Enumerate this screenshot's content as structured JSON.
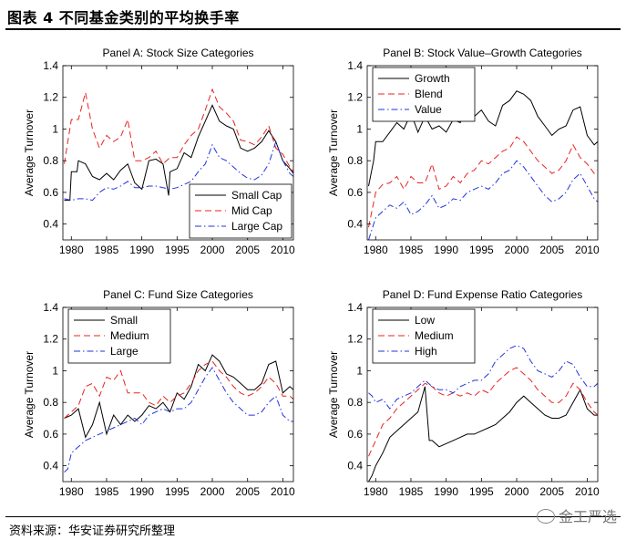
{
  "figure_title": "图表 4 不同基金类别的平均换手率",
  "source_note": "资料来源：华安证券研究所整理",
  "watermark": "金工严选",
  "colors": {
    "black": "#000000",
    "red": "#e8231e",
    "blue": "#2233dd"
  },
  "chart_data": [
    {
      "type": "line",
      "title": "Panel A: Stock Size Categories",
      "xlabel": "",
      "ylabel": "Average Turnover",
      "xlim": [
        1978.8,
        2011.5
      ],
      "ylim": [
        0.3,
        1.4
      ],
      "xticks": [
        1980,
        1985,
        1990,
        1995,
        2000,
        2005,
        2010
      ],
      "yticks": [
        0.4,
        0.6,
        0.8,
        1,
        1.2,
        1.4
      ],
      "legend_position": "bottom-right",
      "series": [
        {
          "name": "Small Cap",
          "style": "solid",
          "color": "#000000",
          "x": [
            1979,
            1979.8,
            1980,
            1980.8,
            1981,
            1982,
            1983,
            1984,
            1985,
            1986,
            1987,
            1988,
            1989,
            1990,
            1991,
            1992,
            1993,
            1993.8,
            1994,
            1995,
            1996,
            1997,
            1998,
            1999,
            2000,
            2001,
            2002,
            2003,
            2004,
            2005,
            2006,
            2007,
            2008,
            2009,
            2010,
            2011,
            2011.5
          ],
          "values": [
            0.55,
            0.55,
            0.73,
            0.73,
            0.8,
            0.78,
            0.7,
            0.68,
            0.72,
            0.68,
            0.74,
            0.78,
            0.66,
            0.62,
            0.8,
            0.81,
            0.78,
            0.58,
            0.73,
            0.75,
            0.85,
            0.82,
            0.95,
            1.05,
            1.15,
            1.05,
            1.02,
            1.0,
            0.88,
            0.86,
            0.88,
            0.92,
            0.99,
            0.92,
            0.8,
            0.75,
            0.72
          ]
        },
        {
          "name": "Mid Cap",
          "style": "dashed",
          "color": "#e8231e",
          "x": [
            1979,
            1980,
            1981,
            1982,
            1983,
            1984,
            1985,
            1986,
            1987,
            1988,
            1989,
            1990,
            1991,
            1992,
            1993,
            1994,
            1995,
            1996,
            1997,
            1998,
            1999,
            2000,
            2001,
            2002,
            2003,
            2004,
            2005,
            2006,
            2007,
            2008,
            2009,
            2010,
            2011,
            2011.5
          ],
          "values": [
            0.78,
            1.06,
            1.06,
            1.23,
            1.0,
            0.88,
            0.96,
            0.92,
            0.95,
            1.06,
            0.8,
            0.8,
            0.82,
            0.86,
            0.78,
            0.82,
            0.82,
            0.9,
            0.96,
            1.0,
            1.12,
            1.25,
            1.14,
            1.1,
            1.05,
            0.93,
            0.92,
            0.9,
            0.95,
            1.02,
            0.88,
            0.84,
            0.76,
            0.73
          ]
        },
        {
          "name": "Large Cap",
          "style": "dashdot",
          "color": "#2233dd",
          "x": [
            1979,
            1980,
            1981,
            1982,
            1983,
            1984,
            1985,
            1986,
            1987,
            1988,
            1989,
            1990,
            1991,
            1992,
            1993,
            1994,
            1995,
            1996,
            1997,
            1998,
            1999,
            2000,
            2001,
            2002,
            2003,
            2004,
            2005,
            2006,
            2007,
            2008,
            2009,
            2010,
            2011,
            2011.5
          ],
          "values": [
            0.56,
            0.55,
            0.56,
            0.56,
            0.55,
            0.6,
            0.63,
            0.62,
            0.64,
            0.67,
            0.63,
            0.63,
            0.64,
            0.64,
            0.63,
            0.62,
            0.63,
            0.65,
            0.67,
            0.73,
            0.78,
            0.9,
            0.82,
            0.8,
            0.76,
            0.72,
            0.69,
            0.68,
            0.71,
            0.78,
            0.92,
            0.8,
            0.72,
            0.7
          ]
        }
      ]
    },
    {
      "type": "line",
      "title": "Panel B: Stock Value–Growth Categories",
      "xlabel": "",
      "ylabel": "Average Turnover",
      "xlim": [
        1978.8,
        2011.5
      ],
      "ylim": [
        0.3,
        1.4
      ],
      "xticks": [
        1980,
        1985,
        1990,
        1995,
        2000,
        2005,
        2010
      ],
      "yticks": [
        0.4,
        0.6,
        0.8,
        1,
        1.2,
        1.4
      ],
      "legend_position": "top-left",
      "series": [
        {
          "name": "Growth",
          "style": "solid",
          "color": "#000000",
          "x": [
            1979,
            1979.7,
            1980,
            1981,
            1982,
            1983,
            1984,
            1985,
            1986,
            1987,
            1988,
            1989,
            1990,
            1991,
            1992,
            1993,
            1994,
            1995,
            1996,
            1997,
            1998,
            1999,
            2000,
            2001,
            2002,
            2003,
            2004,
            2005,
            2006,
            2007,
            2008,
            2009,
            2010,
            2011,
            2011.5
          ],
          "values": [
            0.64,
            0.8,
            0.92,
            0.92,
            0.98,
            1.04,
            1.0,
            1.1,
            0.98,
            1.08,
            1.0,
            1.02,
            0.98,
            1.06,
            1.04,
            1.14,
            1.08,
            1.12,
            1.05,
            1.02,
            1.15,
            1.18,
            1.24,
            1.22,
            1.18,
            1.08,
            1.02,
            0.96,
            1.0,
            1.02,
            1.12,
            1.14,
            0.96,
            0.9,
            0.92
          ]
        },
        {
          "name": "Blend",
          "style": "dashed",
          "color": "#e8231e",
          "x": [
            1979,
            1980,
            1981,
            1982,
            1983,
            1984,
            1985,
            1986,
            1987,
            1988,
            1989,
            1990,
            1991,
            1992,
            1993,
            1994,
            1995,
            1996,
            1997,
            1998,
            1999,
            2000,
            2001,
            2002,
            2003,
            2004,
            2005,
            2006,
            2007,
            2008,
            2009,
            2010,
            2011,
            2011.5
          ],
          "values": [
            0.38,
            0.6,
            0.65,
            0.66,
            0.7,
            0.62,
            0.7,
            0.66,
            0.66,
            0.78,
            0.62,
            0.64,
            0.7,
            0.66,
            0.72,
            0.74,
            0.8,
            0.78,
            0.82,
            0.86,
            0.88,
            0.95,
            0.92,
            0.86,
            0.8,
            0.76,
            0.72,
            0.74,
            0.8,
            0.9,
            0.82,
            0.78,
            0.72,
            0.74
          ]
        },
        {
          "name": "Value",
          "style": "dashdot",
          "color": "#2233dd",
          "x": [
            1979,
            1980,
            1981,
            1982,
            1983,
            1984,
            1985,
            1986,
            1987,
            1988,
            1989,
            1990,
            1991,
            1992,
            1993,
            1994,
            1995,
            1996,
            1997,
            1998,
            1999,
            2000,
            2001,
            2002,
            2003,
            2004,
            2005,
            2006,
            2007,
            2008,
            2009,
            2010,
            2011,
            2011.5
          ],
          "values": [
            0.3,
            0.44,
            0.48,
            0.52,
            0.5,
            0.54,
            0.46,
            0.48,
            0.52,
            0.58,
            0.5,
            0.52,
            0.56,
            0.55,
            0.6,
            0.62,
            0.64,
            0.62,
            0.66,
            0.72,
            0.74,
            0.8,
            0.76,
            0.7,
            0.64,
            0.58,
            0.54,
            0.56,
            0.6,
            0.68,
            0.72,
            0.64,
            0.56,
            0.54
          ]
        }
      ]
    },
    {
      "type": "line",
      "title": "Panel C: Fund Size Categories",
      "xlabel": "",
      "ylabel": "Average Turnover",
      "xlim": [
        1978.8,
        2011.5
      ],
      "ylim": [
        0.3,
        1.4
      ],
      "xticks": [
        1980,
        1985,
        1990,
        1995,
        2000,
        2005,
        2010
      ],
      "yticks": [
        0.4,
        0.6,
        0.8,
        1,
        1.2,
        1.4
      ],
      "legend_position": "top-left",
      "series": [
        {
          "name": "Small",
          "style": "solid",
          "color": "#000000",
          "x": [
            1979,
            1980,
            1981,
            1982,
            1983,
            1984,
            1985,
            1986,
            1987,
            1988,
            1989,
            1990,
            1991,
            1992,
            1993,
            1994,
            1995,
            1996,
            1997,
            1998,
            1999,
            2000,
            2001,
            2002,
            2003,
            2004,
            2005,
            2006,
            2007,
            2008,
            2009,
            2010,
            2011,
            2011.5
          ],
          "values": [
            0.7,
            0.72,
            0.76,
            0.58,
            0.66,
            0.8,
            0.6,
            0.72,
            0.66,
            0.72,
            0.68,
            0.72,
            0.78,
            0.76,
            0.8,
            0.74,
            0.86,
            0.82,
            0.9,
            1.04,
            1.0,
            1.1,
            1.06,
            0.98,
            0.96,
            0.92,
            0.88,
            0.88,
            0.92,
            1.04,
            1.06,
            0.86,
            0.9,
            0.88
          ]
        },
        {
          "name": "Medium",
          "style": "dashed",
          "color": "#e8231e",
          "x": [
            1979,
            1980,
            1981,
            1982,
            1983,
            1984,
            1985,
            1986,
            1987,
            1988,
            1989,
            1990,
            1991,
            1992,
            1993,
            1994,
            1995,
            1996,
            1997,
            1998,
            1999,
            2000,
            2001,
            2002,
            2003,
            2004,
            2005,
            2006,
            2007,
            2008,
            2009,
            2010,
            2011,
            2011.5
          ],
          "values": [
            0.7,
            0.74,
            0.78,
            0.9,
            0.92,
            0.84,
            0.96,
            0.94,
            1.0,
            0.86,
            0.86,
            0.86,
            0.8,
            0.78,
            0.84,
            0.8,
            0.84,
            0.86,
            0.92,
            1.0,
            1.04,
            1.06,
            1.0,
            0.96,
            0.9,
            0.86,
            0.84,
            0.86,
            0.9,
            0.96,
            0.92,
            0.84,
            0.84,
            0.82
          ]
        },
        {
          "name": "Large",
          "style": "dashdot",
          "color": "#2233dd",
          "x": [
            1979,
            1979.5,
            1980,
            1981,
            1982,
            1983,
            1984,
            1985,
            1986,
            1987,
            1988,
            1989,
            1990,
            1991,
            1992,
            1993,
            1994,
            1995,
            1996,
            1997,
            1998,
            1999,
            2000,
            2001,
            2002,
            2003,
            2004,
            2005,
            2006,
            2007,
            2008,
            2009,
            2010,
            2011,
            2011.5
          ],
          "values": [
            0.36,
            0.38,
            0.48,
            0.52,
            0.56,
            0.58,
            0.6,
            0.62,
            0.64,
            0.66,
            0.68,
            0.7,
            0.66,
            0.72,
            0.74,
            0.76,
            0.74,
            0.76,
            0.76,
            0.8,
            0.88,
            0.96,
            1.02,
            0.94,
            0.86,
            0.8,
            0.76,
            0.72,
            0.72,
            0.74,
            0.8,
            0.84,
            0.72,
            0.68,
            0.68
          ]
        }
      ]
    },
    {
      "type": "line",
      "title": "Panel D: Fund Expense Ratio Categories",
      "xlabel": "",
      "ylabel": "Average Turnover",
      "xlim": [
        1978.8,
        2011.5
      ],
      "ylim": [
        0.3,
        1.4
      ],
      "xticks": [
        1980,
        1985,
        1990,
        1995,
        2000,
        2005,
        2010
      ],
      "yticks": [
        0.4,
        0.6,
        0.8,
        1,
        1.2,
        1.4
      ],
      "legend_position": "top-left",
      "series": [
        {
          "name": "Low",
          "style": "solid",
          "color": "#000000",
          "x": [
            1979,
            1979.5,
            1980,
            1981,
            1982,
            1983,
            1984,
            1985,
            1986,
            1987,
            1987.6,
            1988,
            1989,
            1990,
            1991,
            1992,
            1993,
            1994,
            1995,
            1996,
            1997,
            1998,
            1999,
            2000,
            2001,
            2002,
            2003,
            2004,
            2005,
            2006,
            2007,
            2008,
            2009,
            2010,
            2011,
            2011.5
          ],
          "values": [
            0.3,
            0.34,
            0.4,
            0.48,
            0.58,
            0.62,
            0.66,
            0.7,
            0.74,
            0.9,
            0.56,
            0.56,
            0.52,
            0.54,
            0.56,
            0.58,
            0.6,
            0.6,
            0.62,
            0.64,
            0.66,
            0.7,
            0.74,
            0.8,
            0.84,
            0.8,
            0.76,
            0.72,
            0.7,
            0.7,
            0.72,
            0.8,
            0.88,
            0.76,
            0.72,
            0.72
          ]
        },
        {
          "name": "Medium",
          "style": "dashed",
          "color": "#e8231e",
          "x": [
            1979,
            1980,
            1981,
            1982,
            1983,
            1984,
            1985,
            1986,
            1987,
            1988,
            1989,
            1990,
            1991,
            1992,
            1993,
            1994,
            1995,
            1996,
            1997,
            1998,
            1999,
            2000,
            2001,
            2002,
            2003,
            2004,
            2005,
            2006,
            2007,
            2008,
            2009,
            2010,
            2011,
            2011.5
          ],
          "values": [
            0.46,
            0.56,
            0.66,
            0.7,
            0.76,
            0.8,
            0.84,
            0.88,
            0.92,
            0.9,
            0.86,
            0.84,
            0.86,
            0.84,
            0.86,
            0.84,
            0.88,
            0.86,
            0.92,
            0.96,
            1.0,
            1.02,
            0.98,
            0.94,
            0.88,
            0.84,
            0.8,
            0.8,
            0.84,
            0.92,
            0.88,
            0.8,
            0.74,
            0.72
          ]
        },
        {
          "name": "High",
          "style": "dashdot",
          "color": "#2233dd",
          "x": [
            1979,
            1979.5,
            1980,
            1981,
            1982,
            1983,
            1984,
            1985,
            1986,
            1987,
            1988,
            1989,
            1990,
            1991,
            1992,
            1993,
            1994,
            1995,
            1996,
            1997,
            1998,
            1999,
            2000,
            2001,
            2002,
            2003,
            2004,
            2005,
            2006,
            2007,
            2008,
            2009,
            2010,
            2011,
            2011.5
          ],
          "values": [
            0.86,
            0.84,
            0.8,
            0.82,
            0.76,
            0.82,
            0.84,
            0.86,
            0.9,
            0.94,
            0.9,
            0.88,
            0.88,
            0.86,
            0.9,
            0.92,
            0.94,
            0.94,
            0.98,
            1.06,
            1.1,
            1.14,
            1.16,
            1.14,
            1.06,
            1.0,
            0.98,
            0.96,
            1.0,
            1.06,
            1.04,
            0.96,
            0.9,
            0.9,
            0.92
          ]
        }
      ]
    }
  ]
}
